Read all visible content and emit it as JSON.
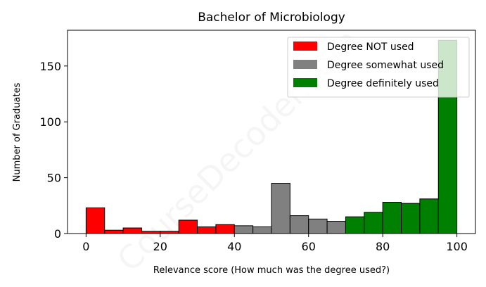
{
  "chart_data": {
    "type": "bar",
    "title": "Bachelor of Microbiology",
    "xlabel": "Relevance score (How much was the degree used?)",
    "ylabel": "Number of Graduates",
    "xlim": [
      -5,
      105
    ],
    "ylim": [
      0,
      182
    ],
    "xticks": [
      0,
      20,
      40,
      60,
      80,
      100
    ],
    "yticks": [
      0,
      50,
      100,
      150
    ],
    "bin_width": 5,
    "bins": [
      {
        "x": 0,
        "value": 23,
        "group": "not"
      },
      {
        "x": 5,
        "value": 3,
        "group": "not"
      },
      {
        "x": 10,
        "value": 5,
        "group": "not"
      },
      {
        "x": 15,
        "value": 2,
        "group": "not"
      },
      {
        "x": 20,
        "value": 2,
        "group": "not"
      },
      {
        "x": 25,
        "value": 12,
        "group": "not"
      },
      {
        "x": 30,
        "value": 6,
        "group": "not"
      },
      {
        "x": 35,
        "value": 8,
        "group": "not"
      },
      {
        "x": 40,
        "value": 7,
        "group": "somewhat"
      },
      {
        "x": 45,
        "value": 6,
        "group": "somewhat"
      },
      {
        "x": 50,
        "value": 45,
        "group": "somewhat"
      },
      {
        "x": 55,
        "value": 16,
        "group": "somewhat"
      },
      {
        "x": 60,
        "value": 13,
        "group": "somewhat"
      },
      {
        "x": 65,
        "value": 11,
        "group": "somewhat"
      },
      {
        "x": 70,
        "value": 15,
        "group": "definitely"
      },
      {
        "x": 75,
        "value": 19,
        "group": "definitely"
      },
      {
        "x": 80,
        "value": 28,
        "group": "definitely"
      },
      {
        "x": 85,
        "value": 27,
        "group": "definitely"
      },
      {
        "x": 90,
        "value": 31,
        "group": "definitely"
      },
      {
        "x": 95,
        "value": 173,
        "group": "definitely"
      }
    ],
    "legend": {
      "placement": "top-right",
      "entries": [
        {
          "key": "not",
          "label": "Degree NOT used",
          "color": "#ff0000"
        },
        {
          "key": "somewhat",
          "label": "Degree somewhat used",
          "color": "#808080"
        },
        {
          "key": "definitely",
          "label": "Degree definitely used",
          "color": "#008000"
        }
      ]
    },
    "grid": false
  },
  "watermark": "CourseDecoder.com"
}
